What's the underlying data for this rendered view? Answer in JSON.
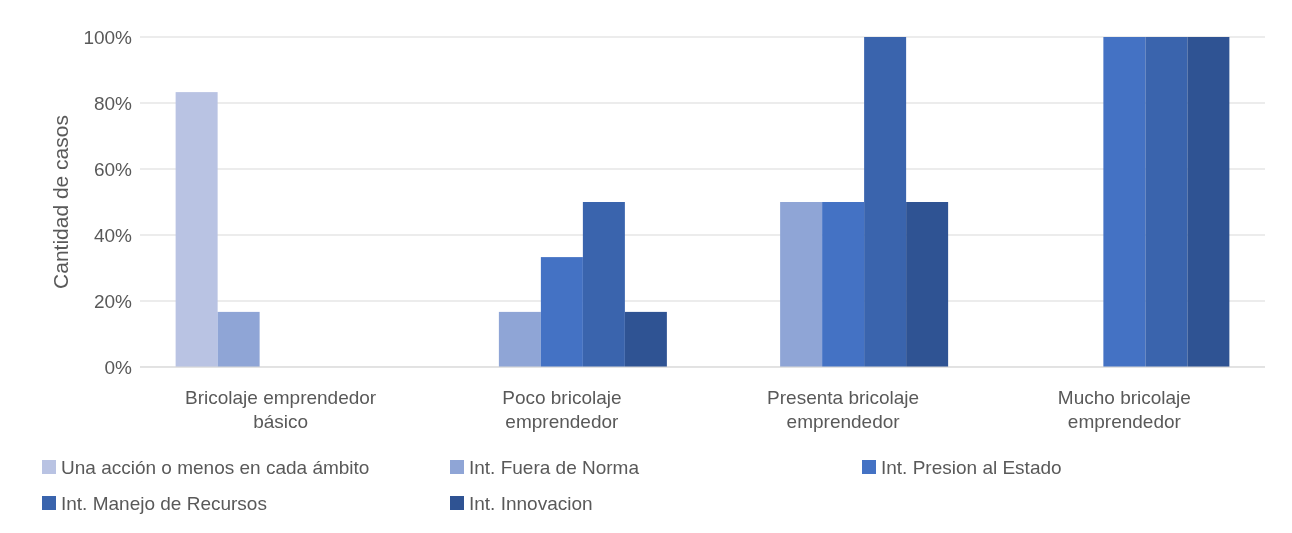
{
  "chart_data": {
    "type": "bar",
    "ylabel": "Cantidad de casos",
    "categories": [
      "Bricolaje emprendedor básico",
      "Poco bricolaje emprendedor",
      "Presenta bricolaje emprendedor",
      "Mucho bricolaje emprendedor"
    ],
    "series": [
      {
        "name": "Una acción o menos en cada ámbito",
        "color": "#b9c3e3",
        "values": [
          83.3,
          0,
          0,
          0
        ]
      },
      {
        "name": "Int. Fuera de Norma",
        "color": "#8fa5d6",
        "values": [
          16.7,
          16.7,
          50,
          0
        ]
      },
      {
        "name": "Int. Presion al Estado",
        "color": "#4472c4",
        "values": [
          0,
          33.3,
          50,
          100
        ]
      },
      {
        "name": "Int. Manejo de Recursos",
        "color": "#3a64ad",
        "values": [
          0,
          50,
          100,
          100
        ]
      },
      {
        "name": "Int. Innovacion",
        "color": "#2f5393",
        "values": [
          0,
          16.7,
          50,
          100
        ]
      }
    ],
    "ylim": [
      0,
      100
    ],
    "yticks": [
      {
        "value": 0,
        "label": "0%"
      },
      {
        "value": 20,
        "label": "20%"
      },
      {
        "value": 40,
        "label": "40%"
      },
      {
        "value": 60,
        "label": "60%"
      },
      {
        "value": 80,
        "label": "80%"
      },
      {
        "value": 100,
        "label": "100%"
      }
    ],
    "grid": "y",
    "legend": "bottom"
  }
}
